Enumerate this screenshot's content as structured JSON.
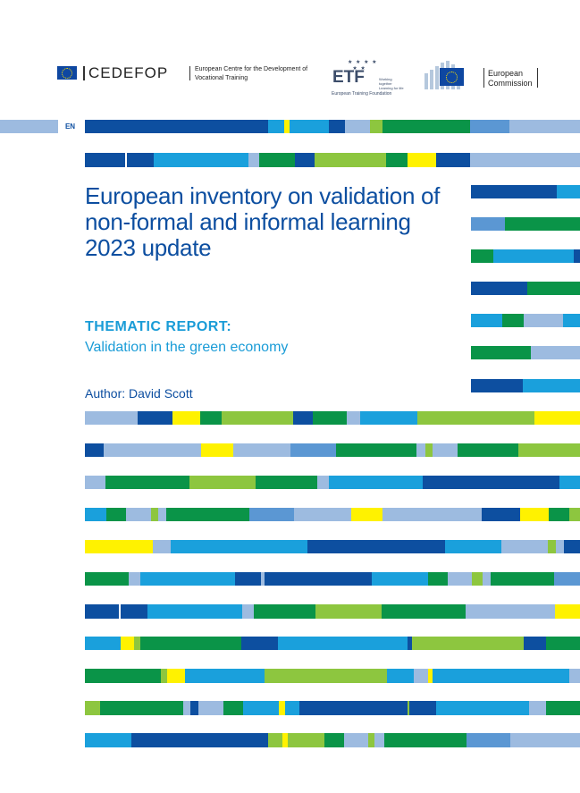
{
  "header": {
    "cedefop_logo": "CEDEFOP",
    "cedefop_subtitle": "European Centre for the Development of Vocational Training",
    "etf_logo": "ETF",
    "etf_tagline": "Working together Learning for life",
    "etf_subtitle": "European Training Foundation",
    "ec_logo_text": "European Commission"
  },
  "language_badge": "EN",
  "title": "European inventory on validation of non-formal and informal learning 2023 update",
  "report_type": "THEMATIC REPORT:",
  "subtitle": "Validation in the green economy",
  "author": "Author: David Scott",
  "colors": {
    "dark_blue": "#0d4fa0",
    "cyan": "#1aa0dc",
    "green": "#0a9448",
    "light_green": "#8dc63f",
    "yellow": "#fff200",
    "light_blue": "#9dbbe0",
    "mid_blue": "#5b97d3"
  }
}
